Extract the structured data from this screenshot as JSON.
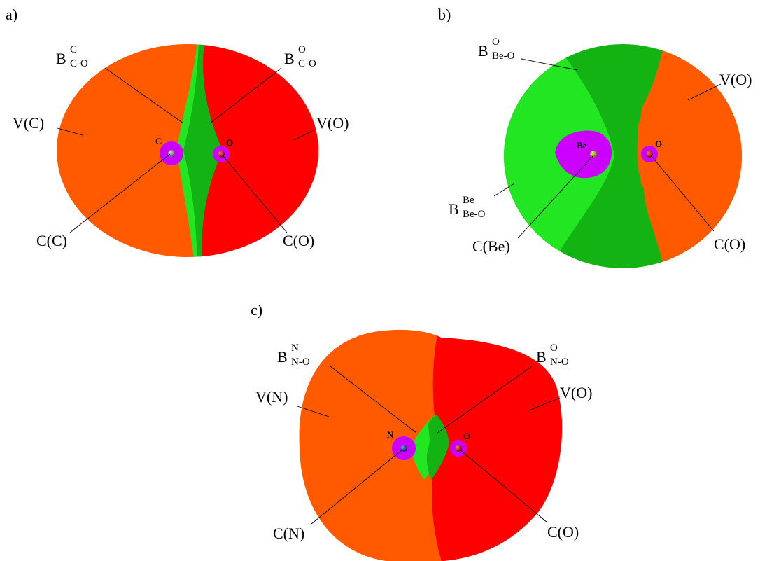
{
  "colors": {
    "valence": "#ff5a00",
    "valence_oxygen": "#ff0000",
    "bond_dark": "#12b312",
    "bond_light": "#22e622",
    "core": "#cc00ff",
    "atom_carbon": "#777777",
    "atom_oxygen": "#a00000",
    "atom_beryllium": "#a8a820",
    "atom_nitrogen": "#1a2aa8"
  },
  "panels": {
    "a": {
      "letter": "a)",
      "atoms": {
        "left": "C",
        "right": "O"
      },
      "labels": {
        "v_left": "V(C)",
        "v_right": "V(O)",
        "c_left": "C(C)",
        "c_right": "C(O)",
        "b_left": {
          "main": "B",
          "sup": "C",
          "sub": "C-O"
        },
        "b_right": {
          "main": "B",
          "sup": "O",
          "sub": "C-O"
        }
      }
    },
    "b": {
      "letter": "b)",
      "atoms": {
        "left": "Be",
        "right": "O"
      },
      "labels": {
        "v_right": "V(O)",
        "c_left": "C(Be)",
        "c_right": "C(O)",
        "b_top": {
          "main": "B",
          "sup": "O",
          "sub": "Be-O"
        },
        "b_left": {
          "main": "B",
          "sup": "Be",
          "sub": "Be-O"
        }
      }
    },
    "c": {
      "letter": "c)",
      "atoms": {
        "left": "N",
        "right": "O"
      },
      "labels": {
        "v_left": "V(N)",
        "v_right": "V(O)",
        "c_left": "C(N)",
        "c_right": "C(O)",
        "b_left": {
          "main": "B",
          "sup": "N",
          "sub": "N-O"
        },
        "b_right": {
          "main": "B",
          "sup": "O",
          "sub": "N-O"
        }
      }
    }
  }
}
